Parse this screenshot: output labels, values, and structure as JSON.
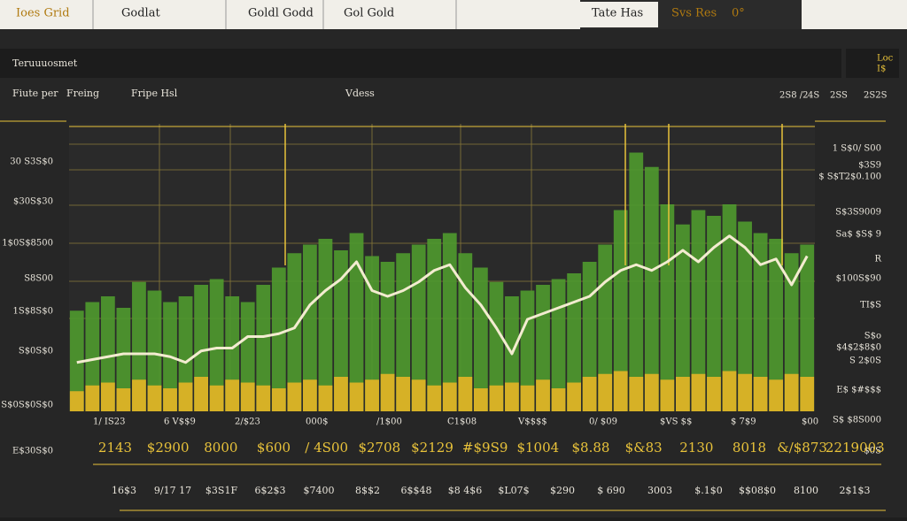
{
  "tabs": [
    "Ioes Grid",
    "Godlat",
    "Goldl Godd",
    "Gol Gold",
    "Tate Has",
    "Svs Res",
    "0°"
  ],
  "panel_title": "Teruuuosmet",
  "panel_corner": [
    "Loc",
    "I$"
  ],
  "columns": [
    "Fiute per",
    "Freing",
    "Fripe Hsl",
    "Vdess"
  ],
  "columns_right": [
    "2S8 /2",
    "4S",
    "2SS",
    "2S2S"
  ],
  "left_labels": [
    "30 S3S$0",
    "$30S$30",
    "1$0S$8500",
    "S8S00",
    "1S$8S$0",
    "S$0S$0",
    "S$0S$0S$0",
    "E$30S$0"
  ],
  "right_labels": [
    "1 S$0/ S00",
    "$3S9",
    "$ S$T2$0.100",
    "S$3S9009",
    "Sa$ $S$ 9",
    "R",
    "$100S$90",
    "TI$S",
    "S$o",
    "$4$2$8$0",
    "S 2$0S",
    "E$ $#$$$",
    "S$ $8S000",
    "$0S"
  ],
  "x_labels": [
    "1/ IS23",
    "6 V$$9",
    "2/$23",
    "000$",
    "/1$00",
    "C1$08",
    "V$$$$",
    "0/ $09",
    "$VS $$",
    "$ 7$9",
    "$00"
  ],
  "row1": [
    "2143",
    "$2900",
    "8000",
    "$600",
    "/ 4S00",
    "$2708",
    "$2129",
    "#$9S9",
    "$1004",
    "$8.88",
    "$&83",
    "2130",
    "8018",
    "&/$873",
    "2219003"
  ],
  "row2": [
    "16$3",
    "9/17 17",
    "$3S1F",
    "6$2$3",
    "$7400",
    "8$$2",
    "6$$48",
    "$8 4$6",
    "$L07$",
    "$290",
    "$ 690",
    "3003",
    "$.1$0",
    "$$08$0",
    "8100",
    "2$1$3"
  ],
  "chart_data": {
    "type": "line",
    "xlim": [
      -0.5,
      47.5
    ],
    "ylim": [
      0,
      100
    ],
    "x": [
      0,
      1,
      2,
      3,
      4,
      5,
      6,
      7,
      8,
      9,
      10,
      11,
      12,
      13,
      14,
      15,
      16,
      17,
      18,
      19,
      20,
      21,
      22,
      23,
      24,
      25,
      26,
      27,
      28,
      29,
      30,
      31,
      32,
      33,
      34,
      35,
      36,
      37,
      38,
      39,
      40,
      41,
      42,
      43,
      44,
      45,
      46,
      47
    ],
    "series": [
      {
        "color": "#f3ecd0",
        "values": [
          17,
          18,
          19,
          20,
          20,
          20,
          19,
          17,
          21,
          22,
          22,
          26,
          26,
          27,
          29,
          37,
          42,
          46,
          52,
          42,
          40,
          42,
          45,
          49,
          51,
          43,
          37,
          29,
          20,
          32,
          34,
          36,
          38,
          40,
          45,
          49,
          51,
          49,
          52,
          56,
          52,
          57,
          61,
          57,
          51,
          53,
          44,
          54
        ]
      },
      {
        "color": "#4f9a2e",
        "kind": "bar",
        "values": [
          35,
          38,
          40,
          36,
          45,
          42,
          38,
          40,
          44,
          46,
          40,
          38,
          44,
          50,
          55,
          58,
          60,
          56,
          62,
          54,
          52,
          55,
          58,
          60,
          62,
          55,
          50,
          45,
          40,
          42,
          44,
          46,
          48,
          52,
          58,
          70,
          90,
          85,
          72,
          65,
          70,
          68,
          72,
          66,
          62,
          60,
          55,
          58
        ]
      },
      {
        "color": "#e6b526",
        "kind": "bar",
        "values": [
          7,
          9,
          10,
          8,
          11,
          9,
          8,
          10,
          12,
          9,
          11,
          10,
          9,
          8,
          10,
          11,
          9,
          12,
          10,
          11,
          13,
          12,
          11,
          9,
          10,
          12,
          8,
          9,
          10,
          9,
          11,
          8,
          10,
          12,
          13,
          14,
          12,
          13,
          11,
          12,
          13,
          12,
          14,
          13,
          12,
          11,
          13,
          12
        ]
      }
    ]
  }
}
